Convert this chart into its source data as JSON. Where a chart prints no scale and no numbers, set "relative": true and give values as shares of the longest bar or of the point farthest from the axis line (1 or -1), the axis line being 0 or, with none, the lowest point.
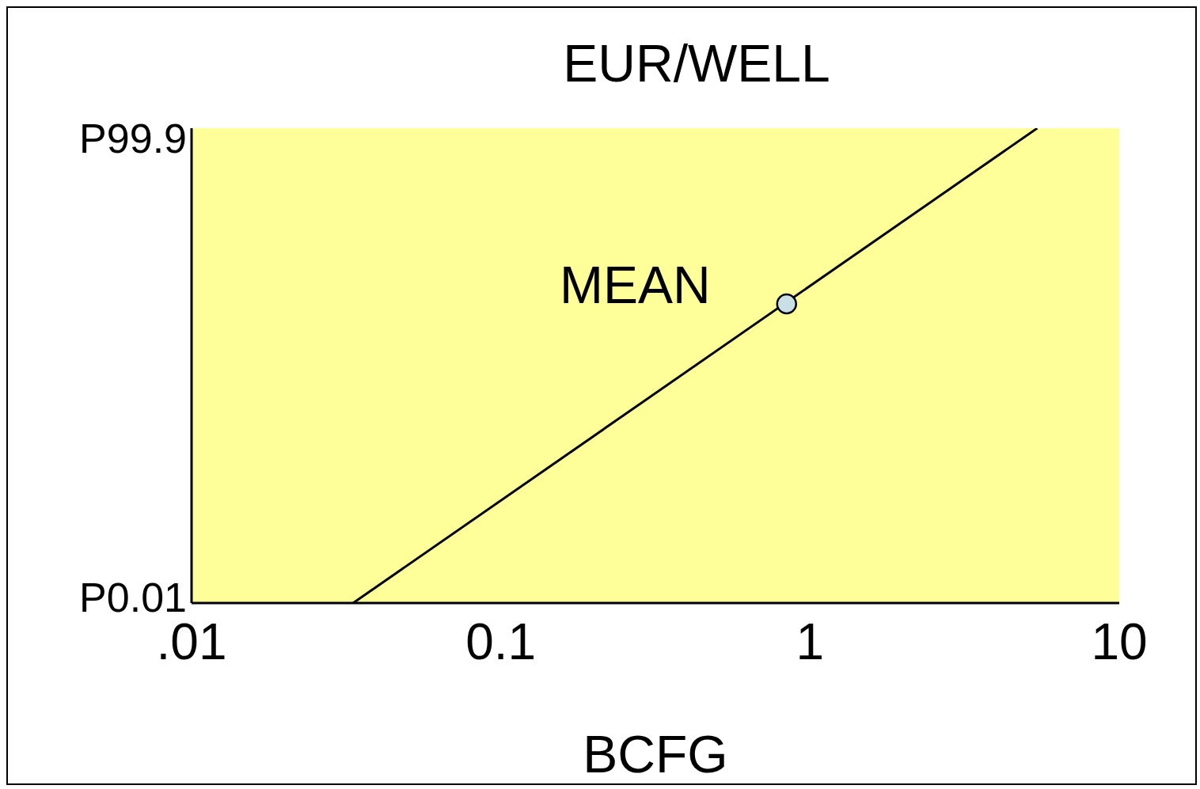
{
  "chart_data": {
    "type": "line",
    "title": "EUR/WELL",
    "xlabel": "BCFG",
    "log": "x",
    "relative": true,
    "xlim": [
      0.01,
      10
    ],
    "xticks": [
      {
        "value": 0.01,
        "label": ".01"
      },
      0.1,
      1,
      10
    ],
    "grid": false,
    "series": [
      {
        "color": "#000000",
        "x": [
          0.0333,
          5.43
        ],
        "values": [
          0,
          1
        ],
        "marker": "none",
        "line_style": "solid"
      },
      {
        "type": "scatter",
        "color": "#c9dfe6",
        "x": [
          0.84
        ],
        "values": [
          0.63
        ],
        "marker": "circle"
      }
    ],
    "annotations": [
      {
        "text": "MEAN",
        "x": 0.84,
        "y": 0.63
      },
      "P99.9",
      "P0.01"
    ]
  }
}
